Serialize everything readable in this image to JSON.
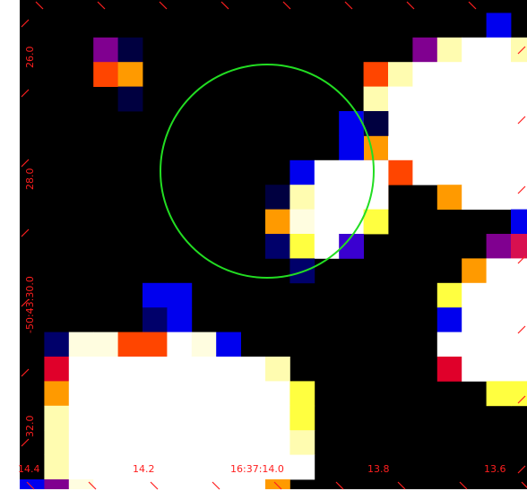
{
  "image": {
    "colormap": "heat",
    "background_color": "#000000",
    "region_color": "#22dd22",
    "label_color": "#ff1f1f",
    "region_shape": "circle"
  },
  "x_axis_labels": [
    "14.4",
    "14.2",
    "16:37:14.0",
    "13.8",
    "13.6"
  ],
  "y_axis_labels": [
    "26.0",
    "28.0",
    "-50:43:30.0",
    "32.0"
  ]
}
